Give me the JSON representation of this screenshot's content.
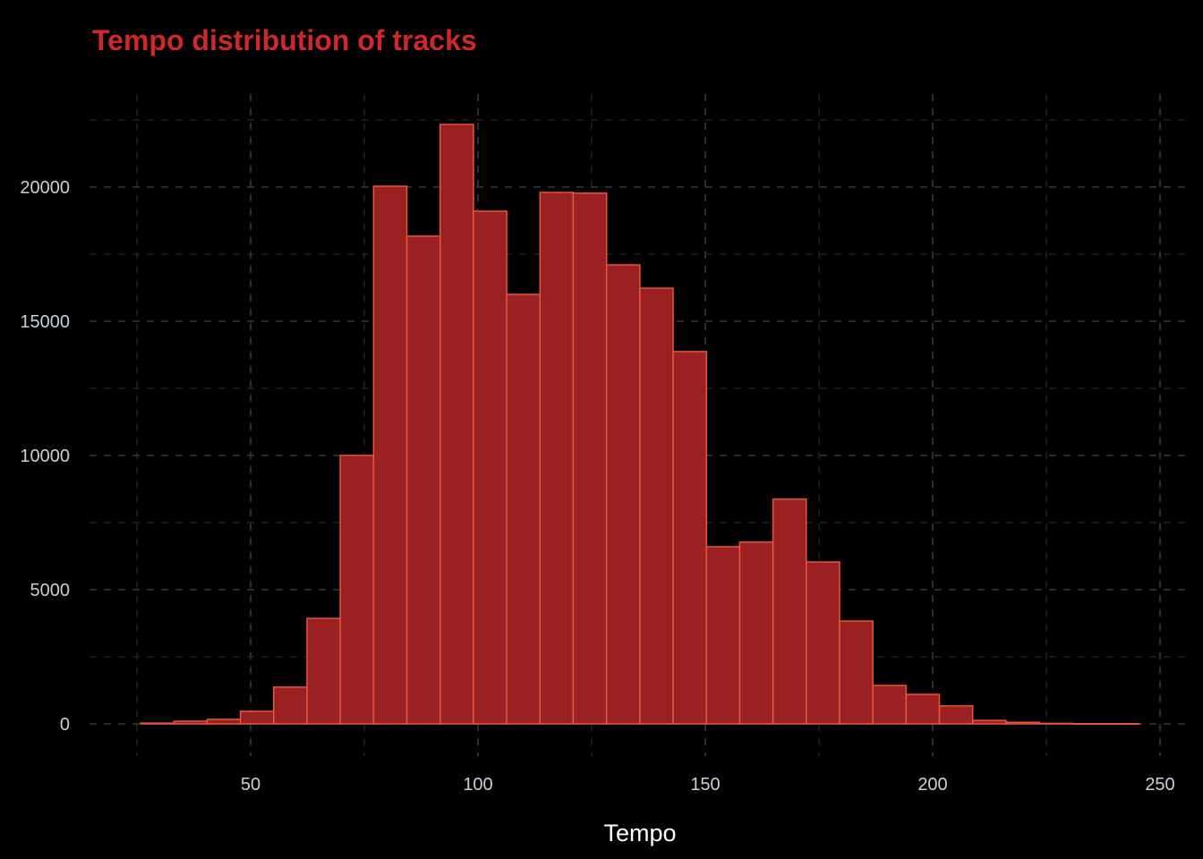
{
  "chart_data": {
    "type": "bar",
    "subtype": "histogram",
    "title": "Tempo distribution of tracks",
    "xlabel": "Tempo",
    "ylabel": "",
    "bin_start": 25.8,
    "bin_width": 7.32,
    "values": [
      30,
      100,
      170,
      470,
      1370,
      3930,
      10000,
      20030,
      18170,
      22330,
      19100,
      16000,
      19800,
      19770,
      17100,
      16230,
      13870,
      6600,
      6770,
      8370,
      6030,
      3830,
      1430,
      1100,
      670,
      130,
      60,
      20,
      10,
      10
    ],
    "xlim": [
      24,
      253
    ],
    "ylim": [
      -1150,
      23500
    ],
    "x_ticks": [
      "50",
      "100",
      "150",
      "200",
      "250"
    ],
    "y_ticks": [
      "0",
      "5000",
      "10000",
      "15000",
      "20000"
    ],
    "grid": true,
    "grid_style": "dashed",
    "colors": {
      "background": "#000000",
      "bar_fill": "#9b2022",
      "bar_outline": "#e8553a",
      "title": "#d0282a",
      "grid": "#3a3a3a",
      "tick_text": "#c8d0d8"
    }
  }
}
